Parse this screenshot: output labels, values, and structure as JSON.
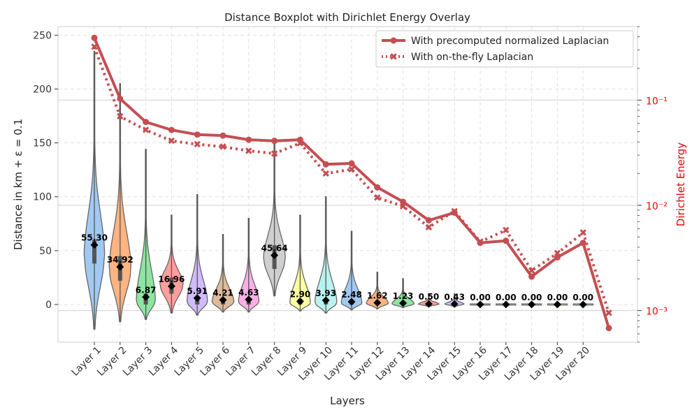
{
  "chart_data": {
    "type": "violin",
    "title": "Distance Boxplot with Dirichlet Energy Overlay",
    "xlabel": "Layers",
    "ylabel": "Distance in km + ε = 0.1",
    "ylabel_right": "Dirichlet Energy",
    "ylim": [
      -35,
      258
    ],
    "y2lim_log": [
      0.0005,
      0.5
    ],
    "y_ticks": [
      0,
      50,
      100,
      150,
      200,
      250
    ],
    "y2_ticks": [
      {
        "value": 0.1,
        "label": "10⁻¹"
      },
      {
        "value": 0.01,
        "label": "10⁻²"
      },
      {
        "value": 0.001,
        "label": "10⁻³"
      }
    ],
    "grid": true,
    "legend_position": "upper-right",
    "categories": [
      "Layer 1",
      "Layer 2",
      "Layer 3",
      "Layer 4",
      "Layer 5",
      "Layer 6",
      "Layer 7",
      "Layer 8",
      "Layer 9",
      "Layer 10",
      "Layer 11",
      "Layer 12",
      "Layer 13",
      "Layer 14",
      "Layer 15",
      "Layer 16",
      "Layer 17",
      "Layer 18",
      "Layer 19",
      "Layer 20"
    ],
    "violins": [
      {
        "color": "#a1c9f4",
        "median": 55.3,
        "label": "55.30",
        "min": -23,
        "max": 235,
        "q1": 38,
        "q3": 60,
        "mode": 45,
        "maxw": 14
      },
      {
        "color": "#ffb482",
        "median": 34.92,
        "label": "34.92",
        "min": -16,
        "max": 205,
        "q1": 22,
        "q3": 45,
        "mode": 32,
        "maxw": 15
      },
      {
        "color": "#8de5a1",
        "median": 6.87,
        "label": "6.87",
        "min": -14,
        "max": 144,
        "q1": 0,
        "q3": 10,
        "mode": 3,
        "maxw": 13
      },
      {
        "color": "#ff9f9b",
        "median": 16.96,
        "label": "16.96",
        "min": -8,
        "max": 83,
        "q1": 10,
        "q3": 25,
        "mode": 18,
        "maxw": 16
      },
      {
        "color": "#d0bbff",
        "median": 5.91,
        "label": "5.91",
        "min": -10,
        "max": 102,
        "q1": 0,
        "q3": 8,
        "mode": 2,
        "maxw": 14
      },
      {
        "color": "#debb9b",
        "median": 4.21,
        "label": "4.21",
        "min": -7,
        "max": 65,
        "q1": 0,
        "q3": 6,
        "mode": 2,
        "maxw": 15
      },
      {
        "color": "#fab0e4",
        "median": 4.63,
        "label": "4.63",
        "min": -7,
        "max": 80,
        "q1": 0,
        "q3": 6,
        "mode": 2,
        "maxw": 14
      },
      {
        "color": "#cfcfcf",
        "median": 45.64,
        "label": "45.64",
        "min": 8,
        "max": 150,
        "q1": 33,
        "q3": 55,
        "mode": 42,
        "maxw": 15
      },
      {
        "color": "#fffea3",
        "median": 2.9,
        "label": "2.90",
        "min": -6,
        "max": 83,
        "q1": 0,
        "q3": 4,
        "mode": 1,
        "maxw": 14
      },
      {
        "color": "#b9f2f0",
        "median": 3.93,
        "label": "3.93",
        "min": -8,
        "max": 100,
        "q1": 0,
        "q3": 5,
        "mode": 1,
        "maxw": 15
      },
      {
        "color": "#a1c9f4",
        "median": 2.48,
        "label": "2.48",
        "min": -5,
        "max": 68,
        "q1": 0,
        "q3": 4,
        "mode": 1,
        "maxw": 14
      },
      {
        "color": "#ffb482",
        "median": 1.62,
        "label": "1.62",
        "min": -4,
        "max": 30,
        "q1": 0,
        "q3": 2,
        "mode": 1,
        "maxw": 15
      },
      {
        "color": "#8de5a1",
        "median": 1.23,
        "label": "1.23",
        "min": -3,
        "max": 24,
        "q1": 0,
        "q3": 2,
        "mode": 0.5,
        "maxw": 15
      },
      {
        "color": "#ff9f9b",
        "median": 0.5,
        "label": "0.50",
        "min": -2,
        "max": 10,
        "q1": 0,
        "q3": 1,
        "mode": 0.3,
        "maxw": 14
      },
      {
        "color": "#d0bbff",
        "median": 0.43,
        "label": "0.43",
        "min": -2,
        "max": 10,
        "q1": 0,
        "q3": 1,
        "mode": 0.3,
        "maxw": 13
      },
      {
        "color": "#debb9b",
        "median": 0.0,
        "label": "0.00",
        "min": -0.6,
        "max": 0.6,
        "q1": 0,
        "q3": 0,
        "mode": 0,
        "maxw": 14
      },
      {
        "color": "#fab0e4",
        "median": 0.0,
        "label": "0.00",
        "min": -0.6,
        "max": 0.6,
        "q1": 0,
        "q3": 0,
        "mode": 0,
        "maxw": 14
      },
      {
        "color": "#cfcfcf",
        "median": 0.0,
        "label": "0.00",
        "min": -0.6,
        "max": 0.6,
        "q1": 0,
        "q3": 0,
        "mode": 0,
        "maxw": 14
      },
      {
        "color": "#fffea3",
        "median": 0.0,
        "label": "0.00",
        "min": -0.6,
        "max": 0.6,
        "q1": 0,
        "q3": 0,
        "mode": 0,
        "maxw": 14
      },
      {
        "color": "#b9f2f0",
        "median": 0.0,
        "label": "0.00",
        "min": -0.6,
        "max": 0.6,
        "q1": 0,
        "q3": 0,
        "mode": 0,
        "maxw": 14
      }
    ],
    "series": [
      {
        "name": "With precomputed normalized Laplacian",
        "color": "#c44e52",
        "style": "solid",
        "marker": "circle",
        "values": [
          0.39,
          0.103,
          0.062,
          0.052,
          0.047,
          0.046,
          0.042,
          0.041,
          0.042,
          0.0245,
          0.025,
          0.0148,
          0.0108,
          0.0072,
          0.0085,
          0.0044,
          0.0046,
          0.0021,
          0.0032,
          0.0044,
          0.00068
        ]
      },
      {
        "name": "With on-the-fly Laplacian",
        "color": "#c44e52",
        "style": "dotted",
        "marker": "x",
        "values": [
          0.32,
          0.07,
          0.052,
          0.041,
          0.038,
          0.036,
          0.033,
          0.031,
          0.039,
          0.02,
          0.022,
          0.0118,
          0.0098,
          0.0062,
          0.0088,
          0.0045,
          0.0058,
          0.0024,
          0.0035,
          0.0055,
          0.00095
        ]
      }
    ]
  }
}
